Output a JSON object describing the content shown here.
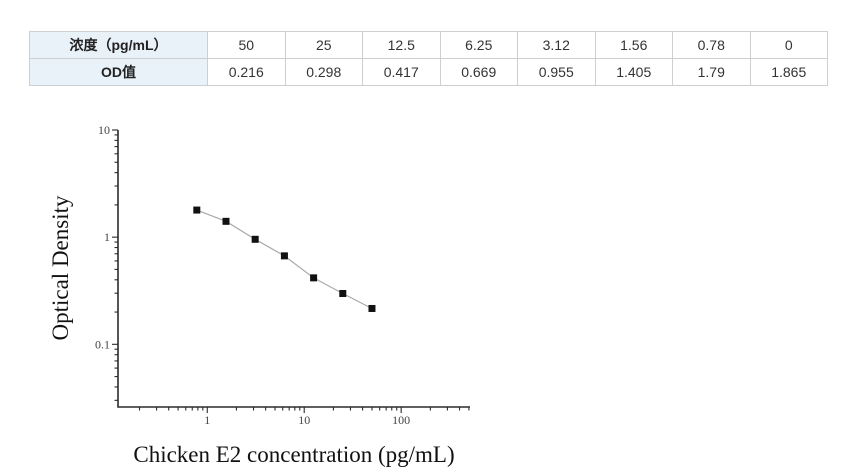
{
  "table": {
    "header_label": "浓度（pg/mL）",
    "od_label": "OD值",
    "concentrations": [
      "50",
      "25",
      "12.5",
      "6.25",
      "3.12",
      "1.56",
      "0.78",
      "0"
    ],
    "od_values": [
      "0.216",
      "0.298",
      "0.417",
      "0.669",
      "0.955",
      "1.405",
      "1.79",
      "1.865"
    ],
    "label_bg": "#e9f1f9",
    "border_color": "#cfcfcf"
  },
  "chart_data": {
    "type": "scatter",
    "title": "",
    "xlabel": "Chicken E2 concentration (pg/mL)",
    "ylabel": "Optical Density",
    "x_scale": "log",
    "y_scale": "log",
    "x": [
      0.78,
      1.56,
      3.12,
      6.25,
      12.5,
      25,
      50
    ],
    "y": [
      1.79,
      1.405,
      0.955,
      0.669,
      0.417,
      0.298,
      0.216
    ],
    "x_ticks": [
      1,
      10,
      100
    ],
    "y_ticks": [
      0.1,
      1,
      10
    ],
    "xlim": [
      0.12,
      513
    ],
    "ylim": [
      0.026,
      10
    ],
    "grid": false,
    "legend": "none",
    "marker": "square",
    "marker_color": "#111111",
    "line_color": "#aaaaaa",
    "axis_color": "#2b2b2b"
  }
}
